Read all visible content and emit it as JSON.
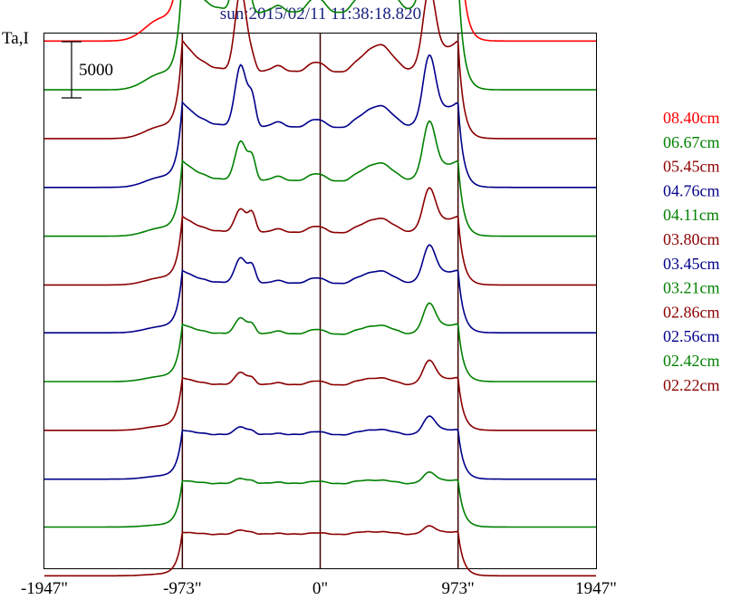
{
  "chart_data": {
    "type": "line",
    "title": "sun:2015/02/11 11:38:18.820",
    "title_color": "#1a237e",
    "ylabel": "Ta,I",
    "scale_bar_label": "5000",
    "xlim": [
      -1947,
      1947
    ],
    "ylim": [
      0,
      57000
    ],
    "x_ticks": [
      {
        "value": -1947,
        "label": "-1947\""
      },
      {
        "value": -973,
        "label": "-973\""
      },
      {
        "value": 0,
        "label": "0\""
      },
      {
        "value": 973,
        "label": "973\""
      },
      {
        "value": 1947,
        "label": "1947\""
      }
    ],
    "vertical_lines": [
      -973,
      0,
      973
    ],
    "grid": false,
    "legend_position": "right",
    "peaks": [
      {
        "x": -1130,
        "w": 110,
        "ok": 0.9
      },
      {
        "x": -560,
        "w": 40,
        "ok": 1.0
      },
      {
        "x": -480,
        "w": 26,
        "ok": 0.8
      },
      {
        "x": -300,
        "w": 50,
        "ok": 0.2
      },
      {
        "x": -30,
        "w": 60,
        "ok": 0.7
      },
      {
        "x": 270,
        "w": 60,
        "ok": 0.3
      },
      {
        "x": 420,
        "w": 90,
        "ok": 1.0
      },
      {
        "x": 770,
        "w": 45,
        "ok": 1.0
      },
      {
        "x": 880,
        "w": 60,
        "ok": 0.2
      }
    ],
    "series": [
      {
        "name": "08.40cm",
        "color": "#ff0000",
        "baseline": 56200,
        "disk_level": 10400,
        "limb_brightening": 0.55,
        "peak_scale": 1.0,
        "peaks": [
          2200,
          11200,
          0,
          1200,
          3000,
          1200,
          5500,
          10000,
          1400
        ]
      },
      {
        "name": "06.67cm",
        "color": "#008000",
        "baseline": 51000,
        "disk_level": 8100,
        "limb_brightening": 0.5,
        "peak_scale": 1.0,
        "peaks": [
          1600,
          10000,
          0,
          900,
          1800,
          900,
          3800,
          9000,
          1000
        ]
      },
      {
        "name": "05.45cm",
        "color": "#8b0000",
        "baseline": 45800,
        "disk_level": 7000,
        "limb_brightening": 0.45,
        "peak_scale": 1.0,
        "peaks": [
          1200,
          8800,
          1200,
          800,
          1200,
          700,
          3000,
          8000,
          800
        ]
      },
      {
        "name": "04.76cm",
        "color": "#00008b",
        "baseline": 40600,
        "disk_level": 6300,
        "limb_brightening": 0.4,
        "peak_scale": 1.0,
        "peaks": [
          1000,
          6700,
          3000,
          700,
          1000,
          600,
          2400,
          7000,
          700
        ]
      },
      {
        "name": "04.11cm",
        "color": "#008000",
        "baseline": 35400,
        "disk_level": 5800,
        "limb_brightening": 0.35,
        "peak_scale": 1.0,
        "peaks": [
          800,
          4300,
          2400,
          600,
          900,
          500,
          2000,
          5800,
          600
        ]
      },
      {
        "name": "03.80cm",
        "color": "#8b0000",
        "baseline": 30200,
        "disk_level": 5500,
        "limb_brightening": 0.3,
        "peak_scale": 1.0,
        "peaks": [
          700,
          2600,
          2000,
          500,
          800,
          400,
          1600,
          4300,
          500
        ]
      },
      {
        "name": "03.45cm",
        "color": "#00008b",
        "baseline": 25100,
        "disk_level": 5200,
        "limb_brightening": 0.25,
        "peak_scale": 1.0,
        "peaks": [
          600,
          2800,
          1800,
          400,
          700,
          400,
          1400,
          3700,
          500
        ]
      },
      {
        "name": "03.21cm",
        "color": "#008000",
        "baseline": 19900,
        "disk_level": 5000,
        "limb_brightening": 0.2,
        "peak_scale": 1.0,
        "peaks": [
          500,
          1800,
          1000,
          400,
          600,
          300,
          1000,
          3000,
          400
        ]
      },
      {
        "name": "02.86cm",
        "color": "#8b0000",
        "baseline": 14700,
        "disk_level": 4800,
        "limb_brightening": 0.15,
        "peak_scale": 1.0,
        "peaks": [
          400,
          1400,
          700,
          300,
          500,
          300,
          800,
          2400,
          300
        ]
      },
      {
        "name": "02.56cm",
        "color": "#00008b",
        "baseline": 9500,
        "disk_level": 4700,
        "limb_brightening": 0.1,
        "peak_scale": 1.0,
        "peaks": [
          300,
          900,
          400,
          200,
          400,
          200,
          600,
          1800,
          300
        ]
      },
      {
        "name": "02.42cm",
        "color": "#008000",
        "baseline": 4400,
        "disk_level": 4600,
        "limb_brightening": 0.07,
        "peak_scale": 1.0,
        "peaks": [
          200,
          600,
          300,
          200,
          300,
          200,
          400,
          1100,
          200
        ]
      },
      {
        "name": "02.22cm",
        "color": "#8b0000",
        "baseline": -800,
        "disk_level": 4400,
        "limb_brightening": 0.05,
        "peak_scale": 1.0,
        "peaks": [
          150,
          500,
          200,
          150,
          200,
          150,
          300,
          800,
          150
        ]
      }
    ]
  }
}
